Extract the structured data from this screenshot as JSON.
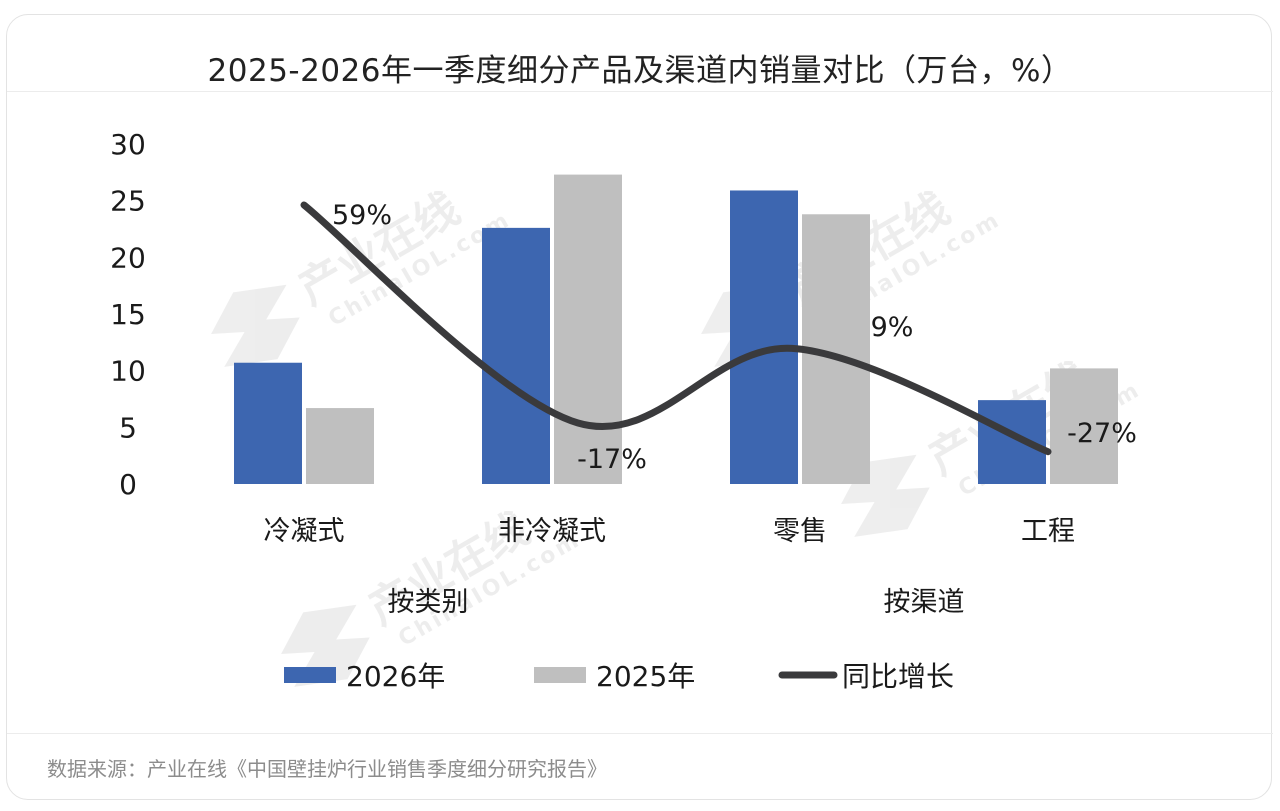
{
  "title": "2025-2026年一季度细分产品及渠道内销量对比（万台，%）",
  "source": "数据来源：产业在线《中国壁挂炉行业销售季度细分研究报告》",
  "watermark": {
    "cn": "产业在线",
    "en": "ChinaIOL.com"
  },
  "colors": {
    "series_2026": "#3d66b0",
    "series_2025": "#bfbfbf",
    "yoy_line": "#3a3a3c"
  },
  "chart_data": {
    "type": "bar",
    "categories": [
      "冷凝式",
      "非冷凝式",
      "零售",
      "工程"
    ],
    "groups": [
      {
        "label": "按类别",
        "categories": [
          "冷凝式",
          "非冷凝式"
        ]
      },
      {
        "label": "按渠道",
        "categories": [
          "零售",
          "工程"
        ]
      }
    ],
    "series": [
      {
        "name": "2026年",
        "values": [
          10.7,
          22.6,
          25.9,
          7.4
        ]
      },
      {
        "name": "2025年",
        "values": [
          6.7,
          27.3,
          23.8,
          10.2
        ]
      }
    ],
    "line_series": {
      "name": "同比增长",
      "values": [
        59,
        -17,
        9,
        -27
      ],
      "labels": [
        "59%",
        "-17%",
        "9%",
        "-27%"
      ]
    },
    "yticks": [
      "0",
      "5",
      "10",
      "15",
      "20",
      "25",
      "30"
    ],
    "ylim": [
      0,
      30
    ],
    "legend_position": "bottom",
    "grid": false
  }
}
